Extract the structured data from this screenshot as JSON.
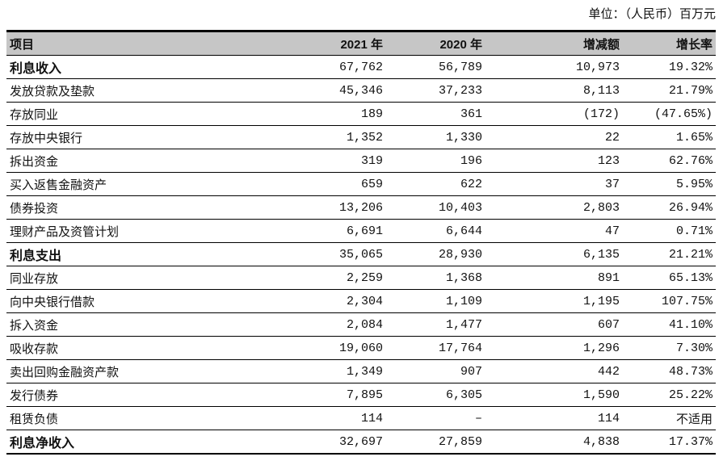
{
  "unit_label": "单位：（人民币）百万元",
  "colors": {
    "header_bg": "#c6c6c6",
    "border": "#000000",
    "text": "#111111"
  },
  "table": {
    "headers": [
      "项目",
      "2021 年",
      "2020 年",
      "增减额",
      "增长率"
    ],
    "rows": [
      {
        "item": "利息收入",
        "y2021": "67,762",
        "y2020": "56,789",
        "change": "10,973",
        "rate": "19.32%",
        "bold": true
      },
      {
        "item": "发放贷款及垫款",
        "y2021": "45,346",
        "y2020": "37,233",
        "change": "8,113",
        "rate": "21.79%",
        "bold": false
      },
      {
        "item": "存放同业",
        "y2021": "189",
        "y2020": "361",
        "change": "(172)",
        "rate": "(47.65%)",
        "bold": false
      },
      {
        "item": "存放中央银行",
        "y2021": "1,352",
        "y2020": "1,330",
        "change": "22",
        "rate": "1.65%",
        "bold": false
      },
      {
        "item": "拆出资金",
        "y2021": "319",
        "y2020": "196",
        "change": "123",
        "rate": "62.76%",
        "bold": false
      },
      {
        "item": "买入返售金融资产",
        "y2021": "659",
        "y2020": "622",
        "change": "37",
        "rate": "5.95%",
        "bold": false
      },
      {
        "item": "债券投资",
        "y2021": "13,206",
        "y2020": "10,403",
        "change": "2,803",
        "rate": "26.94%",
        "bold": false
      },
      {
        "item": "理财产品及资管计划",
        "y2021": "6,691",
        "y2020": "6,644",
        "change": "47",
        "rate": "0.71%",
        "bold": false
      },
      {
        "item": "利息支出",
        "y2021": "35,065",
        "y2020": "28,930",
        "change": "6,135",
        "rate": "21.21%",
        "bold": true
      },
      {
        "item": "同业存放",
        "y2021": "2,259",
        "y2020": "1,368",
        "change": "891",
        "rate": "65.13%",
        "bold": false
      },
      {
        "item": "向中央银行借款",
        "y2021": "2,304",
        "y2020": "1,109",
        "change": "1,195",
        "rate": "107.75%",
        "bold": false
      },
      {
        "item": "拆入资金",
        "y2021": "2,084",
        "y2020": "1,477",
        "change": "607",
        "rate": "41.10%",
        "bold": false
      },
      {
        "item": "吸收存款",
        "y2021": "19,060",
        "y2020": "17,764",
        "change": "1,296",
        "rate": "7.30%",
        "bold": false
      },
      {
        "item": "卖出回购金融资产款",
        "y2021": "1,349",
        "y2020": "907",
        "change": "442",
        "rate": "48.73%",
        "bold": false
      },
      {
        "item": "发行债券",
        "y2021": "7,895",
        "y2020": "6,305",
        "change": "1,590",
        "rate": "25.22%",
        "bold": false
      },
      {
        "item": "租赁负债",
        "y2021": "114",
        "y2020": "–",
        "change": "114",
        "rate": "不适用",
        "bold": false
      },
      {
        "item": "利息净收入",
        "y2021": "32,697",
        "y2020": "27,859",
        "change": "4,838",
        "rate": "17.37%",
        "bold": true
      }
    ]
  }
}
